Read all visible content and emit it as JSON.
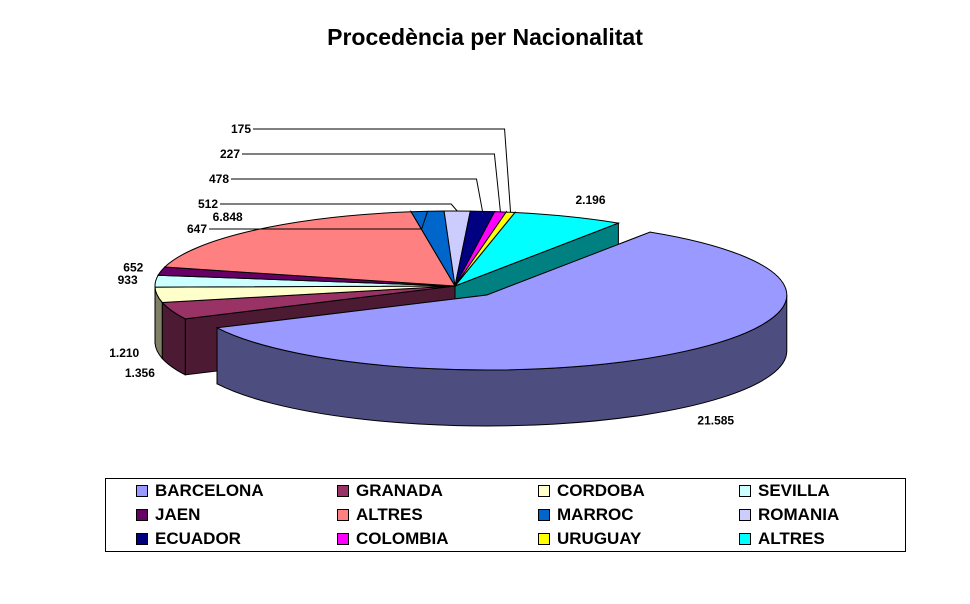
{
  "chart_data": {
    "type": "pie",
    "title": "Procedència per Nacionalitat",
    "slices": [
      {
        "name": "BARCELONA",
        "value": 21585,
        "label": "21.585",
        "color": "#9999FF",
        "side": "#4D4D80"
      },
      {
        "name": "GRANADA",
        "value": 1356,
        "label": "1.356",
        "color": "#993366",
        "side": "#4D1A33"
      },
      {
        "name": "CORDOBA",
        "value": 1210,
        "label": "1.210",
        "color": "#FFFFCC",
        "side": "#808066"
      },
      {
        "name": "SEVILLA",
        "value": 933,
        "label": "933",
        "color": "#CCFFFF",
        "side": "#668080"
      },
      {
        "name": "JAEN",
        "value": 652,
        "label": "652",
        "color": "#660066",
        "side": "#330033"
      },
      {
        "name": "ALTRES",
        "value": 6848,
        "label": "6.848",
        "color": "#FF8080",
        "side": "#804040"
      },
      {
        "name": "MARROC",
        "value": 647,
        "label": "647",
        "color": "#0066CC",
        "side": "#003366"
      },
      {
        "name": "ROMANIA",
        "value": 512,
        "label": "512",
        "color": "#CCCCFF",
        "side": "#666680"
      },
      {
        "name": "ECUADOR",
        "value": 478,
        "label": "478",
        "color": "#000080",
        "side": "#000040"
      },
      {
        "name": "COLOMBIA",
        "value": 227,
        "label": "227",
        "color": "#FF00FF",
        "side": "#800080"
      },
      {
        "name": "URUGUAY",
        "value": 175,
        "label": "175",
        "color": "#FFFF00",
        "side": "#808000"
      },
      {
        "name": "ALTRES",
        "value": 2196,
        "label": "2.196",
        "color": "#00FFFF",
        "side": "#008080"
      }
    ],
    "exploded": "BARCELONA",
    "style": "3d",
    "legend_position": "bottom"
  }
}
